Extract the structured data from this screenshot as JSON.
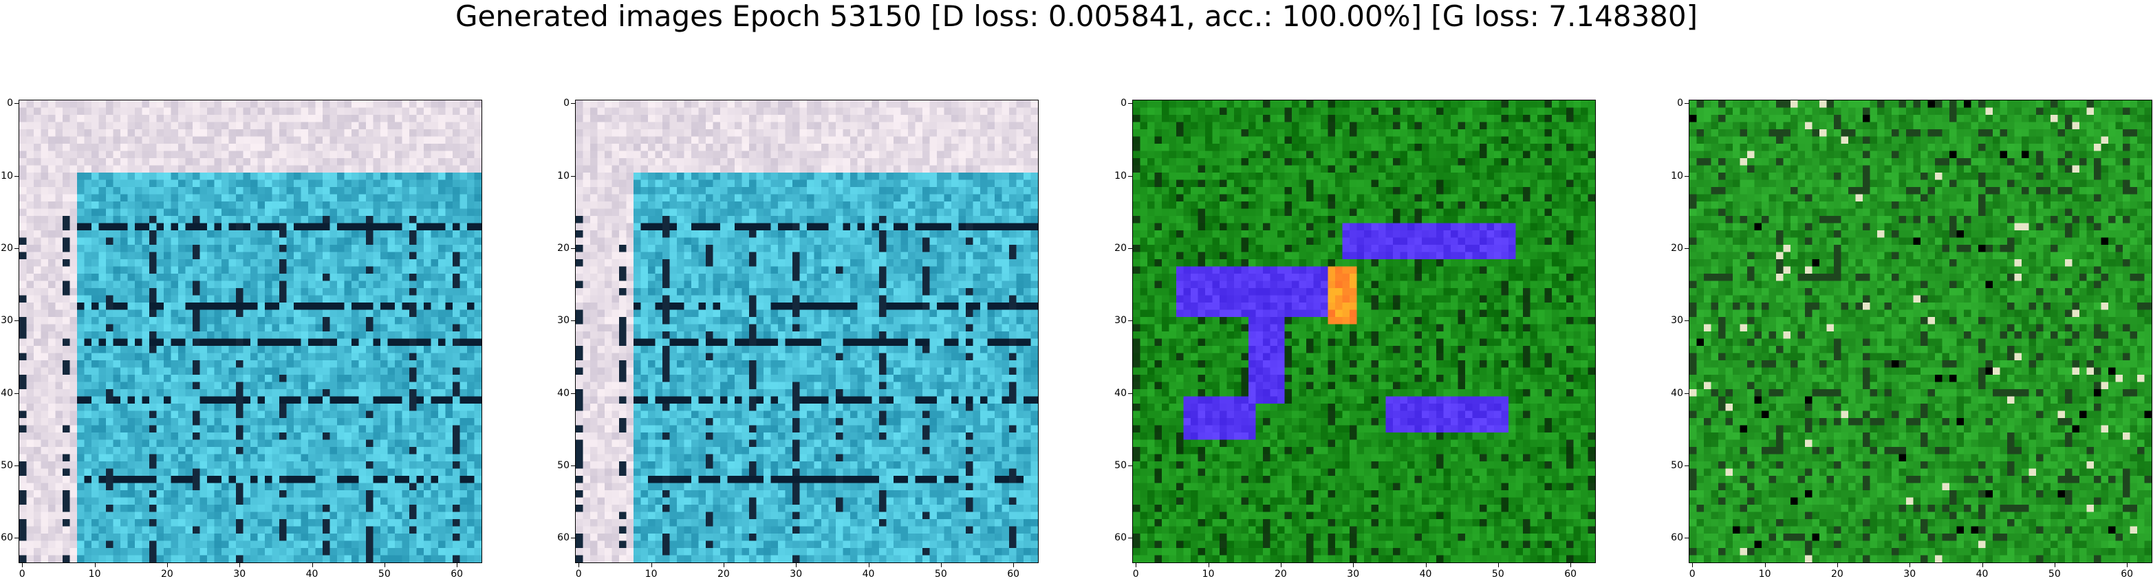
{
  "figure": {
    "title": "Generated images Epoch 53150 [D loss: 0.005841, acc.: 100.00%] [G loss: 7.148380]"
  },
  "axes_common": {
    "ticks": [
      "0",
      "10",
      "20",
      "30",
      "40",
      "50",
      "60"
    ]
  },
  "panels": [
    {
      "name": "generated-image-1",
      "palette": "cyan"
    },
    {
      "name": "generated-image-2",
      "palette": "cyan"
    },
    {
      "name": "generated-image-3",
      "palette": "green-blue"
    },
    {
      "name": "generated-image-4",
      "palette": "green"
    }
  ]
}
